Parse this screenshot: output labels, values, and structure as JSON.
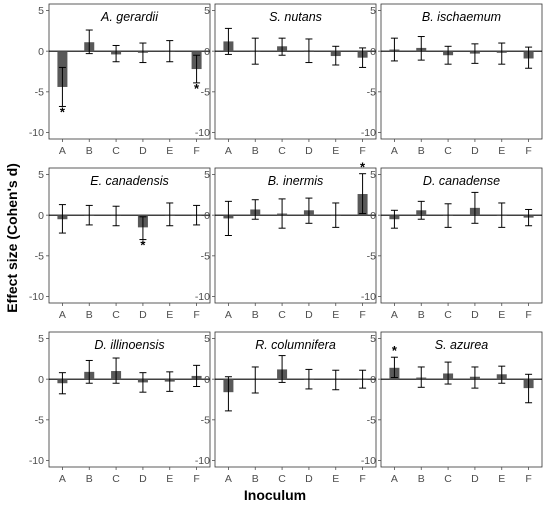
{
  "figure": {
    "xlabel": "Inoculum",
    "ylabel": "Effect size (Cohen's d)"
  },
  "style": {
    "bar_color": "#595959",
    "errorbar_color": "#000000",
    "panel_border_color": "#333333",
    "zero_line_color": "#000000",
    "tick_color": "#4d4d4d"
  },
  "chart_data": [
    {
      "type": "bar",
      "title": "A. gerardii",
      "categories": [
        "A",
        "B",
        "C",
        "D",
        "E",
        "F"
      ],
      "values": [
        -4.4,
        1.1,
        -0.4,
        -0.2,
        -0.1,
        -2.2
      ],
      "err_low": [
        -6.8,
        -0.3,
        -1.3,
        -1.4,
        -1.3,
        -3.9
      ],
      "err_high": [
        -2.0,
        2.6,
        0.7,
        1.0,
        1.3,
        -0.5
      ],
      "significant": [
        true,
        false,
        false,
        false,
        false,
        true
      ],
      "star_position": [
        "below",
        "",
        "",
        "",
        "",
        "below"
      ],
      "ylim": [
        -10.8,
        5.8
      ],
      "yticks": [
        5,
        0,
        -5,
        -10
      ]
    },
    {
      "type": "bar",
      "title": "S. nutans",
      "categories": [
        "A",
        "B",
        "C",
        "D",
        "E",
        "F"
      ],
      "values": [
        1.2,
        0.0,
        0.6,
        0.1,
        -0.6,
        -0.8
      ],
      "err_low": [
        -0.4,
        -1.6,
        -0.5,
        -1.4,
        -1.7,
        -2.0
      ],
      "err_high": [
        2.8,
        1.6,
        1.6,
        1.5,
        0.6,
        0.4
      ],
      "significant": [
        false,
        false,
        false,
        false,
        false,
        false
      ],
      "star_position": [
        "",
        "",
        "",
        "",
        "",
        ""
      ],
      "ylim": [
        -10.8,
        5.8
      ],
      "yticks": [
        5,
        0,
        -5,
        -10
      ]
    },
    {
      "type": "bar",
      "title": "B. ischaemum",
      "categories": [
        "A",
        "B",
        "C",
        "D",
        "E",
        "F"
      ],
      "values": [
        0.2,
        0.4,
        -0.5,
        -0.3,
        -0.2,
        -0.9
      ],
      "err_low": [
        -1.2,
        -1.1,
        -1.6,
        -1.5,
        -1.6,
        -2.1
      ],
      "err_high": [
        1.6,
        1.8,
        0.6,
        0.9,
        1.0,
        0.5
      ],
      "significant": [
        false,
        false,
        false,
        false,
        false,
        false
      ],
      "star_position": [
        "",
        "",
        "",
        "",
        "",
        ""
      ],
      "ylim": [
        -10.8,
        5.8
      ],
      "yticks": [
        5,
        0,
        -5,
        -10
      ]
    },
    {
      "type": "bar",
      "title": "E. canadensis",
      "categories": [
        "A",
        "B",
        "C",
        "D",
        "E",
        "F"
      ],
      "values": [
        -0.5,
        0.0,
        -0.1,
        -1.5,
        0.0,
        0.0
      ],
      "err_low": [
        -2.2,
        -1.2,
        -1.3,
        -3.0,
        -1.3,
        -1.2
      ],
      "err_high": [
        1.3,
        1.2,
        1.1,
        -0.2,
        1.5,
        1.2
      ],
      "significant": [
        false,
        false,
        false,
        true,
        false,
        false
      ],
      "star_position": [
        "",
        "",
        "",
        "below",
        "",
        ""
      ],
      "ylim": [
        -10.8,
        5.8
      ],
      "yticks": [
        5,
        0,
        -5,
        -10
      ]
    },
    {
      "type": "bar",
      "title": "B. inermis",
      "categories": [
        "A",
        "B",
        "C",
        "D",
        "E",
        "F"
      ],
      "values": [
        -0.4,
        0.7,
        0.2,
        0.6,
        0.0,
        2.6
      ],
      "err_low": [
        -2.5,
        -0.5,
        -1.6,
        -1.0,
        -1.5,
        0.2
      ],
      "err_high": [
        1.7,
        1.9,
        2.0,
        2.1,
        1.5,
        5.1
      ],
      "significant": [
        false,
        false,
        false,
        false,
        false,
        true
      ],
      "star_position": [
        "",
        "",
        "",
        "",
        "",
        "above"
      ],
      "ylim": [
        -10.8,
        5.8
      ],
      "yticks": [
        5,
        0,
        -5,
        -10
      ]
    },
    {
      "type": "bar",
      "title": "D. canadense",
      "categories": [
        "A",
        "B",
        "C",
        "D",
        "E",
        "F"
      ],
      "values": [
        -0.5,
        0.6,
        0.0,
        0.9,
        0.0,
        -0.3
      ],
      "err_low": [
        -1.6,
        -0.5,
        -1.5,
        -1.0,
        -1.5,
        -1.3
      ],
      "err_high": [
        0.6,
        1.7,
        1.4,
        2.8,
        1.5,
        0.7
      ],
      "significant": [
        false,
        false,
        false,
        false,
        false,
        false
      ],
      "star_position": [
        "",
        "",
        "",
        "",
        "",
        ""
      ],
      "ylim": [
        -10.8,
        5.8
      ],
      "yticks": [
        5,
        0,
        -5,
        -10
      ]
    },
    {
      "type": "bar",
      "title": "D. illinoensis",
      "categories": [
        "A",
        "B",
        "C",
        "D",
        "E",
        "F"
      ],
      "values": [
        -0.5,
        0.9,
        1.0,
        -0.4,
        -0.3,
        0.4
      ],
      "err_low": [
        -1.8,
        -0.5,
        -0.5,
        -1.6,
        -1.5,
        -0.9
      ],
      "err_high": [
        0.8,
        2.3,
        2.6,
        0.8,
        0.9,
        1.7
      ],
      "significant": [
        false,
        false,
        false,
        false,
        false,
        false
      ],
      "star_position": [
        "",
        "",
        "",
        "",
        "",
        ""
      ],
      "ylim": [
        -10.8,
        5.8
      ],
      "yticks": [
        5,
        0,
        -5,
        -10
      ]
    },
    {
      "type": "bar",
      "title": "R. columnifera",
      "categories": [
        "A",
        "B",
        "C",
        "D",
        "E",
        "F"
      ],
      "values": [
        -1.6,
        -0.1,
        1.2,
        0.0,
        -0.1,
        0.0
      ],
      "err_low": [
        -3.9,
        -1.7,
        -0.4,
        -1.2,
        -1.3,
        -1.1
      ],
      "err_high": [
        0.3,
        1.5,
        2.9,
        1.2,
        1.1,
        1.1
      ],
      "significant": [
        false,
        false,
        false,
        false,
        false,
        false
      ],
      "star_position": [
        "",
        "",
        "",
        "",
        "",
        ""
      ],
      "ylim": [
        -10.8,
        5.8
      ],
      "yticks": [
        5,
        0,
        -5,
        -10
      ]
    },
    {
      "type": "bar",
      "title": "S. azurea",
      "categories": [
        "A",
        "B",
        "C",
        "D",
        "E",
        "F"
      ],
      "values": [
        1.4,
        0.2,
        0.7,
        0.3,
        0.6,
        -1.1
      ],
      "err_low": [
        0.2,
        -1.0,
        -0.6,
        -1.1,
        -0.5,
        -2.9
      ],
      "err_high": [
        2.7,
        1.5,
        2.1,
        1.5,
        1.6,
        0.6
      ],
      "significant": [
        true,
        false,
        false,
        false,
        false,
        false
      ],
      "star_position": [
        "above",
        "",
        "",
        "",
        "",
        ""
      ],
      "ylim": [
        -10.8,
        5.8
      ],
      "yticks": [
        5,
        0,
        -5,
        -10
      ]
    }
  ]
}
